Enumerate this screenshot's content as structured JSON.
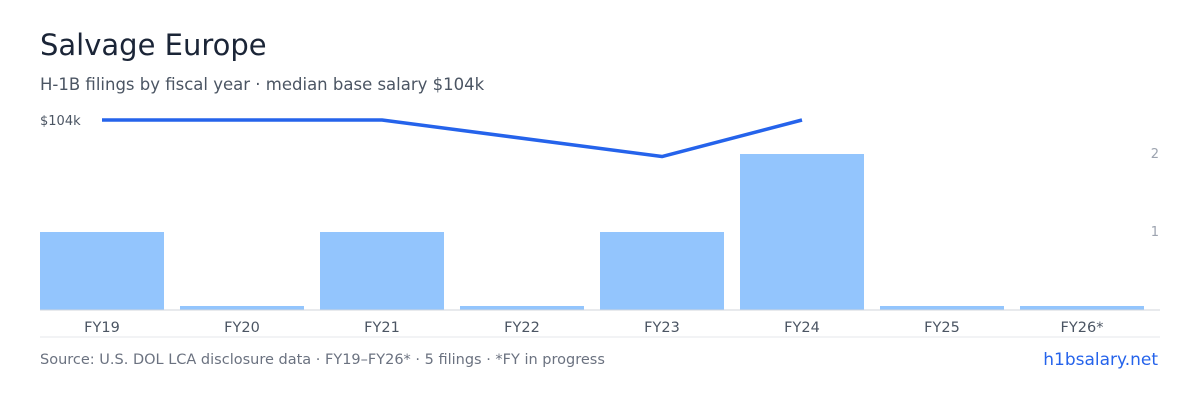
{
  "header": {
    "title": "Salvage Europe",
    "subtitle": "H-1B filings by fiscal year · median base salary $104k"
  },
  "footer": {
    "source": "Source: U.S. DOL LCA disclosure data · FY19–FY26* · 5 filings · *FY in progress",
    "brand": "h1bsalary.net"
  },
  "colors": {
    "bar": "#93c5fd",
    "line": "#2563eb",
    "axis": "#d1d5db"
  },
  "chart_data": {
    "type": "bar",
    "categories": [
      "FY19",
      "FY20",
      "FY21",
      "FY22",
      "FY23",
      "FY24",
      "FY25",
      "FY26*"
    ],
    "series": [
      {
        "type": "bar",
        "axis": "right",
        "values": [
          1,
          0,
          1,
          0,
          1,
          2,
          0,
          0
        ]
      },
      {
        "type": "line",
        "axis": "left",
        "values": [
          104,
          104,
          104,
          null,
          99,
          104,
          null,
          null
        ]
      }
    ],
    "y_right": {
      "ticks": [
        "1",
        "2"
      ],
      "range": [
        0,
        2
      ]
    },
    "y_left": {
      "ticks": [
        "$104k"
      ],
      "range": [
        78,
        104
      ]
    }
  }
}
